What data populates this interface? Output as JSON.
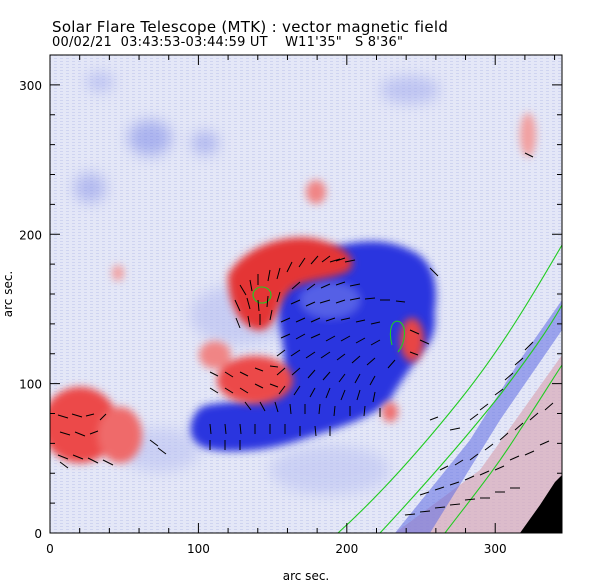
{
  "header": {
    "title": "Solar Flare Telescope (MTK) : vector magnetic field",
    "date": "00/02/21",
    "time_range": "03:43:53-03:44:59 UT",
    "position_w": "W11'35\"",
    "position_s": "S 8'36\""
  },
  "chart_data": {
    "type": "heatmap",
    "title": "Solar Flare Telescope (MTK) : vector magnetic field",
    "xlabel": "arc sec.",
    "ylabel": "arc sec.",
    "xlim": [
      0,
      345
    ],
    "ylim": [
      0,
      320
    ],
    "xticks": [
      0,
      100,
      200,
      300
    ],
    "yticks": [
      0,
      100,
      200,
      300
    ],
    "colors": {
      "positive_polarity": "#e83030",
      "negative_polarity": "#2a35e0",
      "background": "#dfe3f6",
      "contour": "#22cc22",
      "vectors": "#000000",
      "occulted": "#000000"
    }
  }
}
